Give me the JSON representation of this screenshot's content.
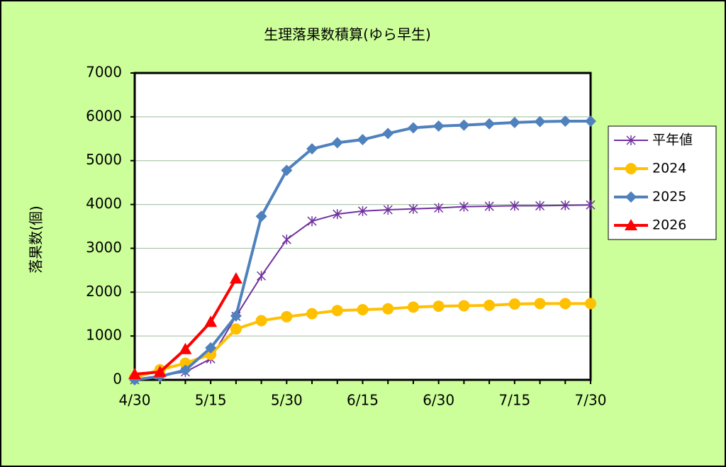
{
  "chart_data": {
    "type": "line",
    "title": "生理落果数積算(ゆら早生)",
    "y_label": "落果数(個)",
    "categories": [
      "4/30",
      null,
      null,
      "5/15",
      null,
      null,
      "5/30",
      null,
      null,
      "6/15",
      null,
      null,
      "6/30",
      null,
      null,
      "7/15",
      null,
      null,
      "7/30"
    ],
    "ylim": [
      0,
      7000
    ],
    "yticks": [
      0,
      1000,
      2000,
      3000,
      4000,
      5000,
      6000,
      7000
    ],
    "grid": true,
    "legend": "right",
    "series": [
      {
        "name": "平年値",
        "color": "#7030a0",
        "marker": "star",
        "values": [
          0,
          100,
          180,
          480,
          1450,
          2370,
          3200,
          3620,
          3780,
          3850,
          3880,
          3900,
          3920,
          3950,
          3960,
          3970,
          3970,
          3980,
          3990
        ]
      },
      {
        "name": "2024",
        "color": "#ffc000",
        "marker": "circle",
        "values": [
          50,
          230,
          380,
          580,
          1160,
          1350,
          1440,
          1510,
          1580,
          1600,
          1620,
          1660,
          1680,
          1690,
          1700,
          1730,
          1740,
          1740,
          1740
        ]
      },
      {
        "name": "2025",
        "color": "#4f81bd",
        "marker": "diamond",
        "values": [
          0,
          80,
          220,
          730,
          1460,
          3730,
          4780,
          5270,
          5410,
          5480,
          5620,
          5750,
          5790,
          5810,
          5840,
          5870,
          5890,
          5900,
          5900
        ]
      },
      {
        "name": "2026",
        "color": "#ff0000",
        "marker": "triangle",
        "values": [
          130,
          180,
          700,
          1320,
          2310,
          null,
          null,
          null,
          null,
          null,
          null,
          null,
          null,
          null,
          null,
          null,
          null,
          null,
          null
        ]
      }
    ]
  }
}
